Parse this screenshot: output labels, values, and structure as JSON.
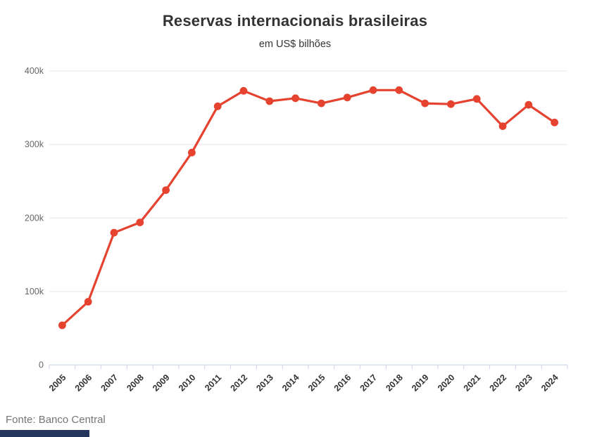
{
  "page": {
    "title": "Reservas internacionais brasileiras",
    "subtitle": "em US$ bilhões",
    "source": "Fonte: Banco Central"
  },
  "colors": {
    "line": "#e5432f",
    "marker": "#e5432f",
    "grid": "#e6e6e6",
    "axis": "#ccd6eb",
    "y_tick_label": "#666666",
    "x_tick_label": "#333333",
    "title_text": "#333333",
    "source_text": "#757575",
    "bottom_bar": "#24365c",
    "background": "#ffffff"
  },
  "chart_data": {
    "type": "line",
    "title": "Reservas internacionais brasileiras",
    "subtitle": "em US$ bilhões",
    "xlabel": "",
    "ylabel": "",
    "categories": [
      "2005",
      "2006",
      "2007",
      "2008",
      "2009",
      "2010",
      "2011",
      "2012",
      "2013",
      "2014",
      "2015",
      "2016",
      "2017",
      "2018",
      "2019",
      "2020",
      "2021",
      "2022",
      "2023",
      "2024"
    ],
    "values": [
      54000,
      86000,
      180000,
      194000,
      238000,
      289000,
      352000,
      373000,
      359000,
      363000,
      356000,
      364000,
      374000,
      374000,
      356000,
      355000,
      362000,
      325000,
      354000,
      330000
    ],
    "ylim": [
      0,
      400000
    ],
    "yticks": [
      0,
      100000,
      200000,
      300000,
      400000
    ],
    "ytick_labels": [
      "0",
      "100k",
      "200k",
      "300k",
      "400k"
    ],
    "x_label_rotation_deg": -45,
    "grid": true,
    "legend": false,
    "marker_shape": "circle"
  }
}
